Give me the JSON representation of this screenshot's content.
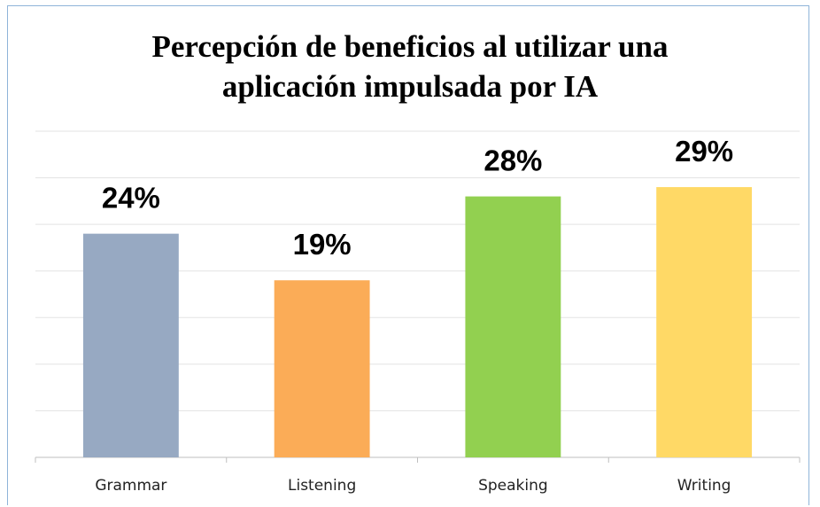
{
  "chart_data": {
    "type": "bar",
    "title": "Percepción de beneficios al utilizar una aplicación impulsada por IA",
    "categories": [
      "Grammar",
      "Listening",
      "Speaking",
      "Writing"
    ],
    "values": [
      24,
      19,
      28,
      29
    ],
    "value_labels": [
      "24%",
      "19%",
      "28%",
      "29%"
    ],
    "colors": [
      "#97a9c2",
      "#fbac57",
      "#92d050",
      "#ffd966"
    ],
    "ylim": [
      0,
      35
    ],
    "yticks": [
      0,
      5,
      10,
      15,
      20,
      25,
      30,
      35
    ],
    "grid": true
  }
}
